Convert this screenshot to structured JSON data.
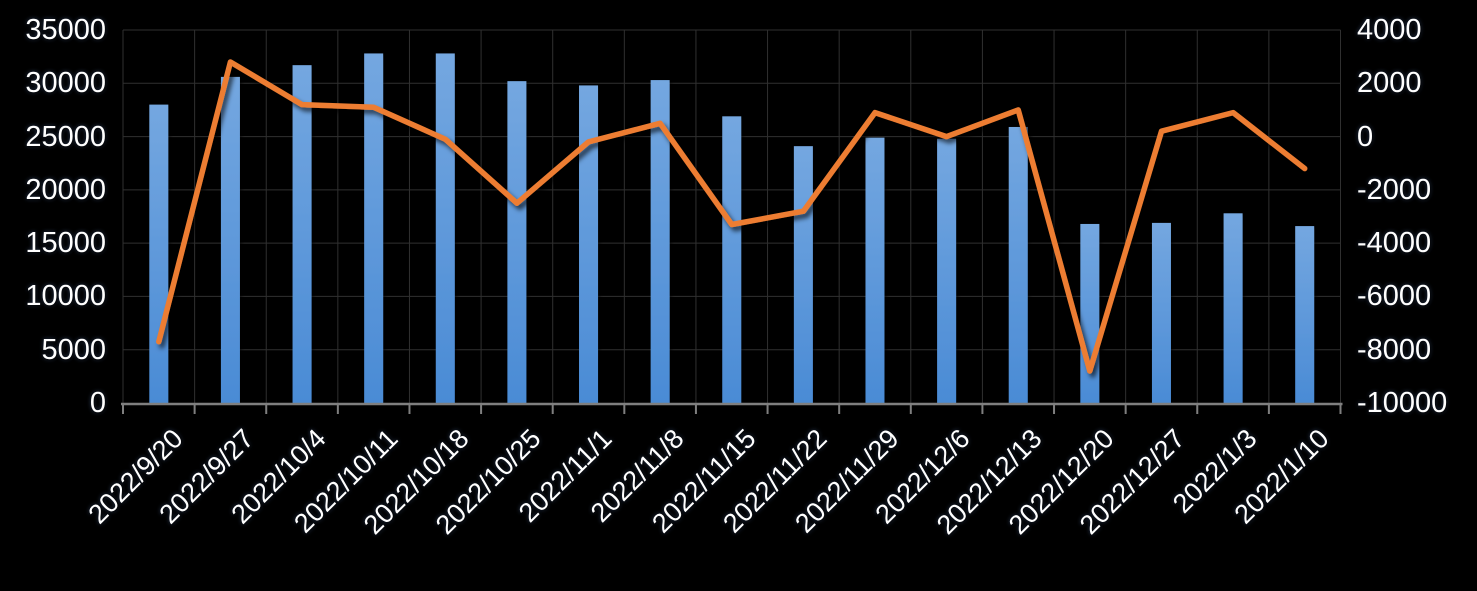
{
  "chart_data": {
    "type": "combo-bar-line",
    "title": "",
    "legend": "none",
    "grid": true,
    "categories": [
      "2022/9/20",
      "2022/9/27",
      "2022/10/4",
      "2022/10/11",
      "2022/10/18",
      "2022/10/25",
      "2022/11/1",
      "2022/11/8",
      "2022/11/15",
      "2022/11/22",
      "2022/11/29",
      "2022/12/6",
      "2022/12/13",
      "2022/12/20",
      "2022/12/27",
      "2022/1/3",
      "2022/1/10"
    ],
    "series": [
      {
        "name": "bars",
        "type": "bar",
        "axis": "left",
        "values": [
          28000,
          30600,
          31700,
          32800,
          32800,
          30200,
          29800,
          30300,
          26900,
          24100,
          24900,
          24800,
          25900,
          16800,
          16900,
          17800,
          16600
        ]
      },
      {
        "name": "line",
        "type": "line",
        "axis": "right",
        "values": [
          -7700,
          2800,
          1200,
          1100,
          -100,
          -2500,
          -200,
          500,
          -3300,
          -2800,
          900,
          0,
          1000,
          -8800,
          200,
          900,
          -1200
        ]
      }
    ],
    "left_axis": {
      "min": 0,
      "max": 35000,
      "step": 5000,
      "ticks": [
        "35000",
        "30000",
        "25000",
        "20000",
        "15000",
        "10000",
        "5000",
        "0"
      ]
    },
    "right_axis": {
      "min": -10000,
      "max": 4000,
      "step": 2000,
      "ticks": [
        "4000",
        "2000",
        "0",
        "-2000",
        "-4000",
        "-6000",
        "-8000",
        "-10000"
      ]
    },
    "colors": {
      "background": "#000000",
      "grid": "#303030",
      "axis": "#7F7F7F",
      "text": "#FFFFFF",
      "bar_top": "#74A7E0",
      "bar_bottom": "#4A8BD5",
      "line": "#ED7D31"
    }
  }
}
